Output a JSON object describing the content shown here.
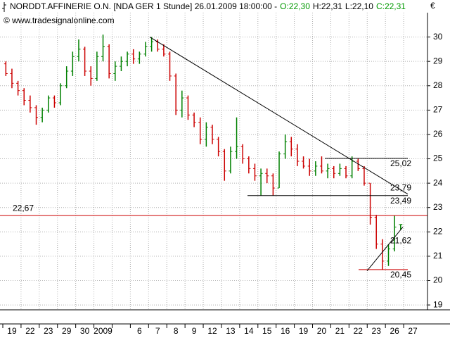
{
  "chart_data": {
    "type": "ohlc",
    "title": "NORDDT.AFFINERIE O.N. [NDA GER  1 Stunde] 26.01.2009 18:00:00 -",
    "quote": [
      {
        "label": "O:22,30",
        "color": "#009900"
      },
      {
        "label": "H:22,31",
        "color": "#000000"
      },
      {
        "label": "L:22,10",
        "color": "#000000"
      },
      {
        "label": "C:22,31",
        "color": "#009900"
      }
    ],
    "source": "© www.tradesignalonline.com",
    "currency": "€",
    "categories": [
      "19",
      "22",
      "23",
      "29",
      "30",
      "2009",
      null,
      "6",
      "7",
      "8",
      "9",
      "12",
      "13",
      "14",
      "15",
      "16",
      "19",
      "20",
      "21",
      "22",
      "23",
      "26",
      "27"
    ],
    "bars": [
      [
        [
          28.9,
          29.0,
          28.4,
          28.5
        ],
        [
          28.5,
          28.7,
          27.9,
          28.1
        ],
        [
          28.1,
          28.2,
          27.6,
          27.8
        ]
      ],
      [
        [
          27.8,
          27.9,
          27.2,
          27.4
        ],
        [
          27.4,
          27.6,
          26.9,
          27.1
        ],
        [
          27.1,
          27.2,
          26.4,
          26.7
        ]
      ],
      [
        [
          26.7,
          27.1,
          26.5,
          27.0
        ],
        [
          27.0,
          27.6,
          26.9,
          27.5
        ],
        [
          27.5,
          27.6,
          27.1,
          27.3
        ]
      ],
      [
        [
          27.3,
          28.1,
          27.2,
          28.0
        ],
        [
          28.0,
          28.8,
          27.9,
          28.6
        ],
        [
          28.6,
          29.4,
          28.4,
          29.2
        ]
      ],
      [
        [
          29.2,
          29.9,
          29.0,
          29.5
        ],
        [
          29.5,
          29.6,
          28.4,
          28.6
        ],
        [
          28.6,
          28.8,
          28.0,
          28.3
        ]
      ],
      [
        [
          28.3,
          29.4,
          28.2,
          29.2
        ],
        [
          29.2,
          30.1,
          29.0,
          29.6
        ],
        [
          29.6,
          29.7,
          28.3,
          28.5
        ]
      ],
      [
        [
          28.5,
          29.0,
          28.2,
          28.8
        ],
        [
          28.8,
          29.2,
          28.6,
          29.0
        ],
        [
          29.0,
          29.4,
          28.8,
          29.3
        ]
      ],
      [
        [
          29.3,
          29.5,
          28.9,
          29.1
        ],
        [
          29.1,
          29.4,
          28.9,
          29.3
        ],
        [
          29.3,
          29.8,
          29.2,
          29.6
        ]
      ],
      [
        [
          29.6,
          30.0,
          29.4,
          29.8
        ],
        [
          29.8,
          29.9,
          29.4,
          29.5
        ],
        [
          29.5,
          29.7,
          29.2,
          29.3
        ]
      ],
      [
        [
          29.3,
          29.4,
          28.2,
          28.4
        ],
        [
          28.4,
          28.5,
          26.8,
          27.0
        ],
        [
          27.0,
          27.8,
          26.7,
          27.5
        ]
      ],
      [
        [
          27.5,
          27.6,
          26.6,
          26.8
        ],
        [
          26.8,
          26.9,
          26.3,
          26.5
        ],
        [
          26.5,
          26.7,
          25.6,
          25.8
        ]
      ],
      [
        [
          25.8,
          26.5,
          25.5,
          26.3
        ],
        [
          26.3,
          26.4,
          25.6,
          25.8
        ],
        [
          25.8,
          25.9,
          25.1,
          25.3
        ]
      ],
      [
        [
          25.3,
          25.4,
          24.1,
          24.5
        ],
        [
          24.5,
          25.5,
          24.4,
          25.3
        ],
        [
          25.3,
          26.7,
          25.0,
          25.5
        ]
      ],
      [
        [
          25.5,
          25.6,
          24.8,
          25.0
        ],
        [
          25.0,
          25.1,
          24.4,
          24.6
        ],
        [
          24.6,
          24.8,
          24.1,
          24.3
        ]
      ],
      [
        [
          24.3,
          24.6,
          23.5,
          24.4
        ],
        [
          24.4,
          24.6,
          24.0,
          24.3
        ],
        [
          24.3,
          24.4,
          23.5,
          23.8
        ]
      ],
      [
        [
          23.8,
          25.3,
          23.8,
          25.2
        ],
        [
          25.2,
          26.0,
          25.0,
          25.7
        ],
        [
          25.7,
          25.9,
          25.1,
          25.4
        ]
      ],
      [
        [
          25.4,
          25.6,
          24.7,
          24.9
        ],
        [
          24.9,
          25.1,
          24.6,
          24.7
        ],
        [
          24.7,
          25.0,
          24.3,
          24.5
        ]
      ],
      [
        [
          24.5,
          24.9,
          24.3,
          24.7
        ],
        [
          24.7,
          25.1,
          24.4,
          24.5
        ],
        [
          24.5,
          24.8,
          24.2,
          24.6
        ]
      ],
      [
        [
          24.6,
          24.7,
          24.2,
          24.4
        ],
        [
          24.4,
          24.8,
          24.3,
          24.6
        ],
        [
          24.6,
          24.7,
          24.2,
          24.3
        ]
      ],
      [
        [
          24.3,
          25.1,
          24.2,
          24.9
        ],
        [
          24.9,
          25.0,
          24.5,
          24.6
        ],
        [
          24.6,
          24.7,
          23.9,
          24.0
        ]
      ],
      [
        [
          24.0,
          24.0,
          22.3,
          22.6
        ],
        [
          22.6,
          22.7,
          21.3,
          21.5
        ],
        [
          21.5,
          21.7,
          20.45,
          20.8
        ]
      ],
      [
        [
          20.8,
          21.5,
          20.6,
          21.3
        ],
        [
          21.3,
          22.67,
          21.2,
          22.2
        ],
        [
          22.3,
          22.31,
          22.1,
          22.31
        ]
      ],
      []
    ],
    "up_color": "#008000",
    "down_color": "#cc0000",
    "ylim": [
      18.8,
      31.0
    ],
    "yticks": [
      19,
      20,
      21,
      22,
      23,
      24,
      25,
      26,
      27,
      28,
      29,
      30
    ],
    "grid": true,
    "levels": [
      {
        "value": 22.67,
        "label": "22,67",
        "color": "#cc0000",
        "span": "full"
      },
      {
        "value": 25.02,
        "label": "25,02",
        "color": "#000000",
        "span": "right"
      },
      {
        "value": 23.49,
        "label": "23,49",
        "color": "#000000",
        "span": "wide"
      },
      {
        "value": 20.45,
        "label": "20,45",
        "color": "#cc0000",
        "span": "short"
      }
    ],
    "trendlines": [
      {
        "start": 30.0,
        "end": 23.55,
        "value": 23.79,
        "label": "23,79"
      },
      {
        "start": 20.4,
        "end": 22.2,
        "value": 21.62,
        "label": "21,62"
      }
    ]
  }
}
